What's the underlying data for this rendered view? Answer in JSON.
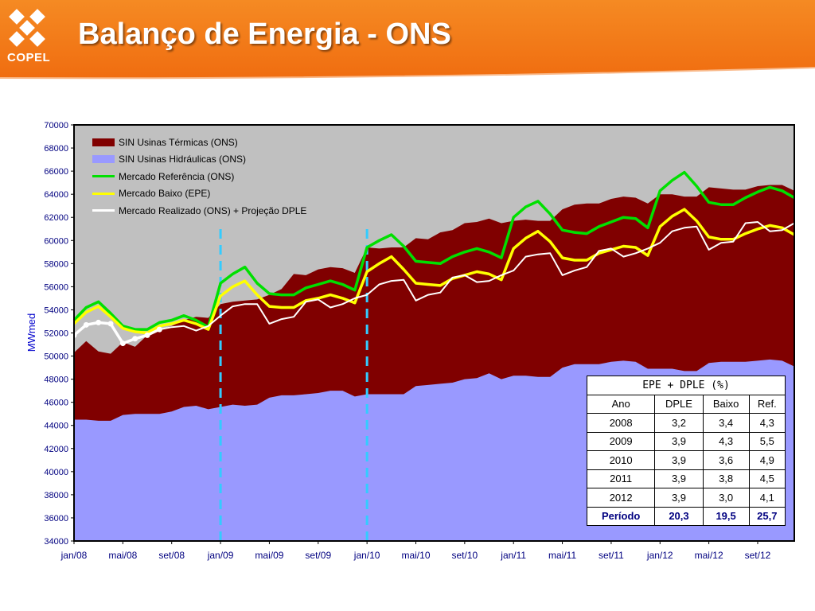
{
  "header": {
    "title": "Balanço de Energia - ONS",
    "logo_text": "COPEL",
    "accent_color": "#f47d1f"
  },
  "chart_data": {
    "type": "area",
    "ylabel": "MWmed",
    "ylim": [
      34000,
      70000
    ],
    "yticks": [
      34000,
      36000,
      38000,
      40000,
      42000,
      44000,
      46000,
      48000,
      50000,
      52000,
      54000,
      56000,
      58000,
      60000,
      62000,
      64000,
      66000,
      68000,
      70000
    ],
    "x_tick_labels": [
      "jan/08",
      "mai/08",
      "set/08",
      "jan/09",
      "mai/09",
      "set/09",
      "jan/10",
      "mai/10",
      "set/10",
      "jan/11",
      "mai/11",
      "set/11",
      "jan/12",
      "mai/12",
      "set/12"
    ],
    "legend_position": "top-left",
    "grid": false,
    "plot_background": "#c0c0c0",
    "series": [
      {
        "name": "SIN Usinas Térmicas (ONS)",
        "kind": "area",
        "color": "#800000",
        "values": [
          50300,
          51300,
          50400,
          50200,
          51200,
          50800,
          51800,
          52300,
          52600,
          53100,
          53400,
          53300,
          54500,
          54700,
          54800,
          54900,
          55300,
          55800,
          57100,
          57000,
          57500,
          57700,
          57600,
          57200,
          59400,
          59300,
          59400,
          59400,
          60200,
          60100,
          60700,
          60900,
          61500,
          61600,
          61900,
          61500,
          61700,
          61800,
          61700,
          61700,
          62700,
          63100,
          63200,
          63200,
          63600,
          63800,
          63700,
          63200,
          64000,
          64000,
          63800,
          63800,
          64600,
          64500,
          64400,
          64400,
          64700,
          64800,
          64800,
          64300
        ]
      },
      {
        "name": "SIN Usinas Hidráulicas (ONS)",
        "kind": "area",
        "color": "#9999ff",
        "values": [
          44500,
          44500,
          44400,
          44400,
          44900,
          45000,
          45000,
          45000,
          45200,
          45600,
          45700,
          45400,
          45600,
          45800,
          45700,
          45800,
          46400,
          46600,
          46600,
          46700,
          46800,
          47000,
          47000,
          46500,
          46700,
          46700,
          46700,
          46700,
          47400,
          47500,
          47600,
          47700,
          48000,
          48100,
          48500,
          48000,
          48300,
          48300,
          48200,
          48200,
          49000,
          49300,
          49300,
          49300,
          49500,
          49600,
          49500,
          48900,
          48900,
          48900,
          48700,
          48700,
          49400,
          49500,
          49500,
          49500,
          49600,
          49700,
          49600,
          49100
        ]
      },
      {
        "name": "Mercado Referência (ONS)",
        "kind": "line",
        "color": "#00e000",
        "values": [
          53100,
          54200,
          54700,
          53700,
          52600,
          52300,
          52300,
          52900,
          53100,
          53500,
          53100,
          52500,
          56300,
          57100,
          57700,
          56300,
          55400,
          55300,
          55300,
          55900,
          56200,
          56500,
          56200,
          55700,
          59400,
          60000,
          60500,
          59500,
          58200,
          58100,
          58000,
          58600,
          59000,
          59300,
          59000,
          58500,
          62000,
          62900,
          63400,
          62300,
          60900,
          60700,
          60600,
          61200,
          61600,
          62000,
          61900,
          61100,
          64300,
          65200,
          65900,
          64700,
          63300,
          63100,
          63100,
          63700,
          64200,
          64600,
          64300,
          63700
        ]
      },
      {
        "name": "Mercado Baixo (EPE)",
        "kind": "line",
        "color": "#ffff00",
        "values": [
          52800,
          53800,
          54300,
          53400,
          52400,
          52100,
          52000,
          52600,
          52800,
          53100,
          52800,
          52300,
          55200,
          56000,
          56500,
          55300,
          54300,
          54200,
          54200,
          54800,
          55000,
          55300,
          55000,
          54600,
          57300,
          58000,
          58600,
          57500,
          56300,
          56200,
          56100,
          56700,
          57000,
          57300,
          57100,
          56600,
          59300,
          60200,
          60800,
          59900,
          58500,
          58300,
          58300,
          58900,
          59200,
          59500,
          59400,
          58700,
          61200,
          62100,
          62700,
          61700,
          60300,
          60100,
          60100,
          60600,
          61000,
          61300,
          61100,
          60500
        ]
      },
      {
        "name": "Mercado Realizado (ONS) + Projeção DPLE",
        "kind": "line",
        "color": "#ffffff",
        "values": [
          51800,
          52700,
          52900,
          52800,
          51100,
          51500,
          51800,
          52300,
          52500,
          52600,
          52200,
          52600,
          53500,
          54300,
          54500,
          54500,
          52800,
          53200,
          53400,
          54700,
          54900,
          54200,
          54500,
          55000,
          55300,
          56200,
          56500,
          56600,
          54800,
          55300,
          55500,
          56800,
          57000,
          56400,
          56500,
          57000,
          57400,
          58600,
          58800,
          58900,
          57000,
          57400,
          57700,
          59100,
          59300,
          58600,
          58900,
          59300,
          59800,
          60800,
          61100,
          61200,
          59200,
          59800,
          59900,
          61500,
          61600,
          60800,
          60900,
          61500
        ],
        "marker_points": 8
      }
    ],
    "vertical_markers": [
      "jan/09",
      "jan/10"
    ],
    "table": {
      "title": "EPE + DPLE (%)",
      "headers": [
        "Ano",
        "DPLE",
        "Baixo",
        "Ref."
      ],
      "rows": [
        [
          "2008",
          "3,2",
          "3,4",
          "4,3"
        ],
        [
          "2009",
          "3,9",
          "4,3",
          "5,5"
        ],
        [
          "2010",
          "3,9",
          "3,6",
          "4,9"
        ],
        [
          "2011",
          "3,9",
          "3,8",
          "4,5"
        ],
        [
          "2012",
          "3,9",
          "3,0",
          "4,1"
        ]
      ],
      "total": [
        "Período",
        "20,3",
        "19,5",
        "25,7"
      ]
    }
  }
}
